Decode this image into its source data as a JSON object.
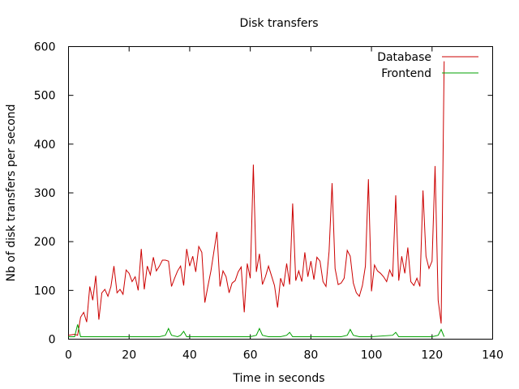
{
  "chart_data": {
    "type": "line",
    "title": "Disk transfers",
    "xlabel": "Time in seconds",
    "ylabel": "Nb of disk transfers per second",
    "xlim": [
      0,
      140
    ],
    "ylim": [
      0,
      600
    ],
    "xticks": [
      0,
      20,
      40,
      60,
      80,
      100,
      120,
      140
    ],
    "yticks": [
      0,
      100,
      200,
      300,
      400,
      500,
      600
    ],
    "grid": false,
    "legend_position": "top-right",
    "series": [
      {
        "name": "Database",
        "color": "#cc0000",
        "x": [
          0,
          1,
          2,
          3,
          4,
          5,
          6,
          7,
          8,
          9,
          10,
          11,
          12,
          13,
          14,
          15,
          16,
          17,
          18,
          19,
          20,
          21,
          22,
          23,
          24,
          25,
          26,
          27,
          28,
          29,
          30,
          31,
          32,
          33,
          34,
          35,
          36,
          37,
          38,
          39,
          40,
          41,
          42,
          43,
          44,
          45,
          46,
          47,
          48,
          49,
          50,
          51,
          52,
          53,
          54,
          55,
          56,
          57,
          58,
          59,
          60,
          61,
          62,
          63,
          64,
          65,
          66,
          67,
          68,
          69,
          70,
          71,
          72,
          73,
          74,
          75,
          76,
          77,
          78,
          79,
          80,
          81,
          82,
          83,
          84,
          85,
          86,
          87,
          88,
          89,
          90,
          91,
          92,
          93,
          94,
          95,
          96,
          97,
          98,
          99,
          100,
          101,
          102,
          103,
          104,
          105,
          106,
          107,
          108,
          109,
          110,
          111,
          112,
          113,
          114,
          115,
          116,
          117,
          118,
          119,
          120,
          121,
          122,
          123,
          124
        ],
        "values": [
          8,
          9,
          10,
          8,
          45,
          55,
          35,
          108,
          80,
          130,
          40,
          95,
          102,
          88,
          108,
          150,
          95,
          102,
          92,
          142,
          135,
          118,
          128,
          100,
          185,
          102,
          150,
          132,
          168,
          140,
          150,
          162,
          162,
          160,
          108,
          125,
          140,
          150,
          110,
          185,
          150,
          170,
          138,
          190,
          178,
          75,
          108,
          140,
          180,
          220,
          108,
          140,
          128,
          95,
          115,
          120,
          138,
          148,
          55,
          155,
          125,
          358,
          138,
          175,
          112,
          128,
          150,
          130,
          110,
          65,
          125,
          108,
          155,
          112,
          278,
          120,
          140,
          118,
          178,
          128,
          160,
          122,
          168,
          160,
          118,
          108,
          180,
          320,
          145,
          112,
          115,
          125,
          182,
          170,
          115,
          95,
          88,
          110,
          150,
          328,
          98,
          152,
          140,
          135,
          128,
          118,
          142,
          128,
          295,
          120,
          170,
          135,
          188,
          118,
          110,
          125,
          108,
          305,
          170,
          145,
          160,
          355,
          80,
          32,
          570
        ]
      },
      {
        "name": "Frontend",
        "color": "#00a000",
        "x": [
          0,
          1,
          2,
          3,
          4,
          10,
          20,
          30,
          32,
          33,
          34,
          36,
          37,
          38,
          39,
          41,
          50,
          60,
          62,
          63,
          64,
          66,
          70,
          72,
          73,
          74,
          76,
          80,
          90,
          92,
          93,
          94,
          96,
          100,
          107,
          108,
          109,
          110,
          120,
          122,
          123,
          124
        ],
        "values": [
          5,
          5,
          5,
          30,
          5,
          5,
          5,
          5,
          8,
          22,
          8,
          5,
          8,
          16,
          5,
          5,
          5,
          5,
          8,
          22,
          8,
          5,
          5,
          8,
          14,
          5,
          5,
          5,
          5,
          8,
          20,
          8,
          5,
          5,
          8,
          14,
          5,
          5,
          5,
          8,
          20,
          5
        ]
      }
    ]
  }
}
